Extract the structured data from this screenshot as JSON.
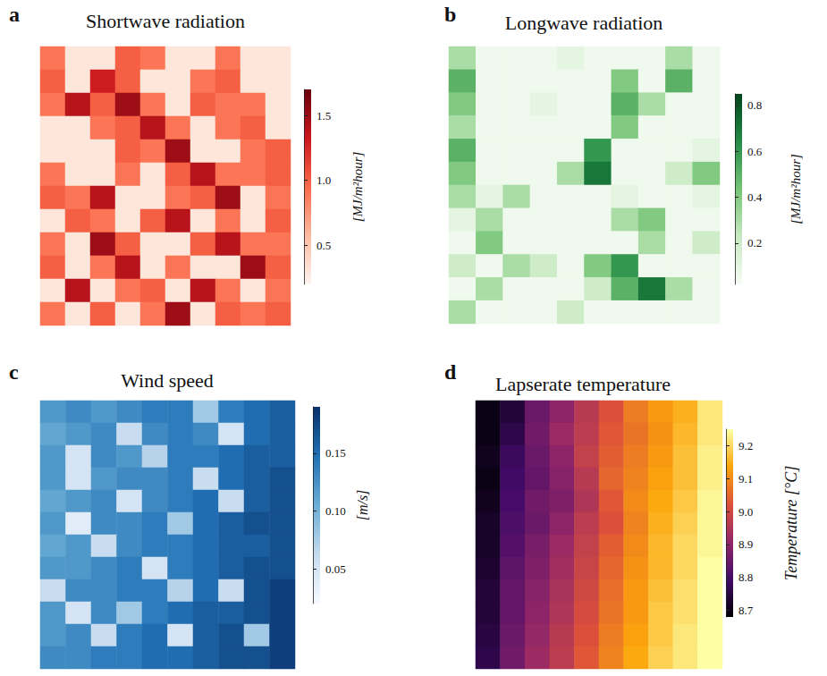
{
  "chart_data": [
    {
      "type": "heatmap",
      "panel": "a",
      "title": "Shortwave radiation",
      "tick_labels": false,
      "cells": [
        [
          0.9,
          0.3,
          0.3,
          1.0,
          0.9,
          0.3,
          0.3,
          0.9,
          0.3,
          0.3
        ],
        [
          1.0,
          0.3,
          1.3,
          1.0,
          0.3,
          0.3,
          0.9,
          1.0,
          0.3,
          0.3
        ],
        [
          0.9,
          1.4,
          1.0,
          1.5,
          0.9,
          0.3,
          1.0,
          0.9,
          0.9,
          0.3
        ],
        [
          0.3,
          0.3,
          0.9,
          1.0,
          1.4,
          0.9,
          0.3,
          0.9,
          1.0,
          0.3
        ],
        [
          0.3,
          0.3,
          0.3,
          1.0,
          0.9,
          1.5,
          0.3,
          0.3,
          0.9,
          1.0
        ],
        [
          0.9,
          0.3,
          0.3,
          0.9,
          0.3,
          1.0,
          1.4,
          0.9,
          0.9,
          1.0
        ],
        [
          1.0,
          0.9,
          1.4,
          0.3,
          0.3,
          0.9,
          1.0,
          1.5,
          0.3,
          0.9
        ],
        [
          0.3,
          1.0,
          0.9,
          0.3,
          1.0,
          1.4,
          0.3,
          0.9,
          0.3,
          1.0
        ],
        [
          0.9,
          0.3,
          1.5,
          1.0,
          0.3,
          0.3,
          1.0,
          1.4,
          0.9,
          0.9
        ],
        [
          1.0,
          0.3,
          0.9,
          1.4,
          0.3,
          0.9,
          0.3,
          0.3,
          1.5,
          1.0
        ],
        [
          0.3,
          1.4,
          0.3,
          0.9,
          1.0,
          0.3,
          1.4,
          0.9,
          0.3,
          0.9
        ],
        [
          0.9,
          0.3,
          1.0,
          0.3,
          0.9,
          1.5,
          0.3,
          1.0,
          0.9,
          1.0
        ]
      ],
      "colorbar": {
        "label": "[MJ/m²hour]",
        "range": [
          0.2,
          1.7
        ],
        "ticks": [
          {
            "value": 0.5,
            "label": "0.5"
          },
          {
            "value": 1.0,
            "label": "1.0"
          },
          {
            "value": 1.5,
            "label": "1.5"
          }
        ],
        "colors": [
          "#fff5f0",
          "#fcbba1",
          "#fb6a4a",
          "#cb181d",
          "#67000d"
        ]
      }
    },
    {
      "type": "heatmap",
      "panel": "b",
      "title": "Longwave radiation",
      "tick_labels": false,
      "cells": [
        [
          0.3,
          0.05,
          0.05,
          0.05,
          0.1,
          0.05,
          0.05,
          0.05,
          0.3,
          0.05
        ],
        [
          0.5,
          0.05,
          0.05,
          0.05,
          0.05,
          0.05,
          0.4,
          0.05,
          0.5,
          0.05
        ],
        [
          0.4,
          0.05,
          0.05,
          0.1,
          0.05,
          0.05,
          0.5,
          0.3,
          0.05,
          0.05
        ],
        [
          0.3,
          0.05,
          0.05,
          0.05,
          0.05,
          0.05,
          0.4,
          0.05,
          0.05,
          0.05
        ],
        [
          0.5,
          0.05,
          0.05,
          0.05,
          0.05,
          0.6,
          0.05,
          0.05,
          0.05,
          0.1
        ],
        [
          0.4,
          0.05,
          0.05,
          0.05,
          0.3,
          0.7,
          0.05,
          0.05,
          0.2,
          0.4
        ],
        [
          0.3,
          0.1,
          0.3,
          0.05,
          0.05,
          0.05,
          0.1,
          0.05,
          0.05,
          0.1
        ],
        [
          0.1,
          0.3,
          0.05,
          0.05,
          0.05,
          0.05,
          0.3,
          0.4,
          0.05,
          0.05
        ],
        [
          0.05,
          0.4,
          0.05,
          0.05,
          0.05,
          0.05,
          0.05,
          0.3,
          0.05,
          0.2
        ],
        [
          0.2,
          0.05,
          0.3,
          0.2,
          0.05,
          0.4,
          0.6,
          0.05,
          0.05,
          0.05
        ],
        [
          0.05,
          0.3,
          0.05,
          0.05,
          0.05,
          0.2,
          0.5,
          0.7,
          0.3,
          0.05
        ],
        [
          0.3,
          0.05,
          0.05,
          0.05,
          0.2,
          0.05,
          0.05,
          0.05,
          0.05,
          0.05
        ]
      ],
      "colorbar": {
        "label": "[MJ/m²hour]",
        "range": [
          0.02,
          0.85
        ],
        "ticks": [
          0.2,
          0.4,
          0.6,
          0.8
        ],
        "colors": [
          "#f7fcf5",
          "#c7e9c0",
          "#74c476",
          "#238b45",
          "#00441b"
        ]
      }
    },
    {
      "type": "heatmap",
      "panel": "c",
      "title": "Wind speed",
      "tick_labels": false,
      "cells": [
        [
          0.12,
          0.13,
          0.12,
          0.13,
          0.14,
          0.14,
          0.08,
          0.14,
          0.15,
          0.16
        ],
        [
          0.11,
          0.12,
          0.13,
          0.06,
          0.13,
          0.14,
          0.13,
          0.05,
          0.15,
          0.16
        ],
        [
          0.12,
          0.05,
          0.13,
          0.12,
          0.07,
          0.14,
          0.14,
          0.15,
          0.16,
          0.16
        ],
        [
          0.12,
          0.05,
          0.12,
          0.13,
          0.13,
          0.14,
          0.06,
          0.15,
          0.16,
          0.17
        ],
        [
          0.11,
          0.12,
          0.13,
          0.05,
          0.13,
          0.14,
          0.15,
          0.06,
          0.16,
          0.17
        ],
        [
          0.12,
          0.04,
          0.13,
          0.13,
          0.14,
          0.08,
          0.15,
          0.16,
          0.17,
          0.17
        ],
        [
          0.11,
          0.12,
          0.06,
          0.13,
          0.14,
          0.14,
          0.15,
          0.16,
          0.16,
          0.17
        ],
        [
          0.12,
          0.12,
          0.13,
          0.14,
          0.05,
          0.14,
          0.15,
          0.16,
          0.17,
          0.17
        ],
        [
          0.06,
          0.13,
          0.13,
          0.14,
          0.14,
          0.07,
          0.15,
          0.06,
          0.17,
          0.18
        ],
        [
          0.12,
          0.05,
          0.13,
          0.08,
          0.14,
          0.15,
          0.16,
          0.16,
          0.17,
          0.18
        ],
        [
          0.12,
          0.13,
          0.06,
          0.14,
          0.15,
          0.05,
          0.16,
          0.17,
          0.08,
          0.18
        ],
        [
          0.13,
          0.13,
          0.14,
          0.14,
          0.15,
          0.15,
          0.16,
          0.17,
          0.17,
          0.18
        ]
      ],
      "colorbar": {
        "label": "[m/s]",
        "range": [
          0.02,
          0.19
        ],
        "ticks": [
          0.05,
          {
            "value": 0.1,
            "label": "0.10"
          },
          0.15
        ],
        "colors": [
          "#f7fbff",
          "#c6dbef",
          "#6baed6",
          "#2171b5",
          "#08306b"
        ]
      }
    },
    {
      "type": "heatmap",
      "panel": "d",
      "title": "Lapserate temperature",
      "tick_labels": false,
      "cells": [
        [
          8.7,
          8.74,
          8.85,
          8.9,
          8.96,
          9.02,
          9.08,
          9.12,
          9.15,
          9.22
        ],
        [
          8.7,
          8.76,
          8.86,
          8.92,
          8.97,
          9.03,
          9.07,
          9.11,
          9.16,
          9.22
        ],
        [
          8.71,
          8.78,
          8.85,
          8.9,
          8.98,
          9.04,
          9.08,
          9.12,
          9.17,
          9.23
        ],
        [
          8.7,
          8.79,
          8.84,
          8.89,
          8.96,
          9.05,
          9.09,
          9.13,
          9.17,
          9.23
        ],
        [
          8.71,
          8.8,
          8.86,
          8.88,
          8.95,
          9.03,
          9.1,
          9.14,
          9.18,
          9.24
        ],
        [
          8.72,
          8.81,
          8.85,
          8.9,
          8.97,
          9.02,
          9.09,
          9.15,
          9.19,
          9.24
        ],
        [
          8.72,
          8.82,
          8.87,
          8.92,
          8.98,
          9.04,
          9.1,
          9.16,
          9.2,
          9.24
        ],
        [
          8.73,
          8.83,
          8.88,
          8.93,
          8.99,
          9.05,
          9.11,
          9.16,
          9.2,
          9.25
        ],
        [
          8.74,
          8.84,
          8.89,
          8.94,
          9.0,
          9.06,
          9.12,
          9.17,
          9.21,
          9.25
        ],
        [
          8.74,
          8.84,
          8.9,
          8.95,
          9.01,
          9.07,
          9.12,
          9.18,
          9.21,
          9.25
        ],
        [
          8.75,
          8.85,
          8.91,
          8.96,
          9.02,
          9.08,
          9.13,
          9.18,
          9.22,
          9.25
        ],
        [
          8.76,
          8.86,
          8.92,
          8.97,
          9.03,
          9.09,
          9.14,
          9.19,
          9.22,
          9.25
        ]
      ],
      "colorbar": {
        "label": "Temperature [°C]",
        "range": [
          8.68,
          9.25
        ],
        "ticks": [
          8.7,
          8.8,
          8.9,
          {
            "value": 9.0,
            "label": "9.0"
          },
          9.1,
          9.2
        ],
        "colors": [
          "#000004",
          "#420a68",
          "#932667",
          "#dd513a",
          "#fca50a",
          "#fcffa4"
        ]
      }
    }
  ]
}
